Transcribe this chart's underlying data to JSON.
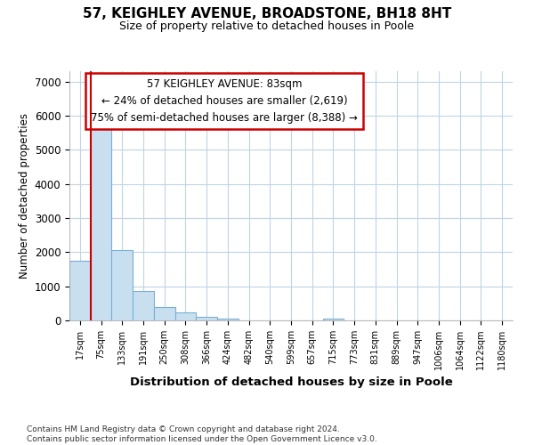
{
  "title1": "57, KEIGHLEY AVENUE, BROADSTONE, BH18 8HT",
  "title2": "Size of property relative to detached houses in Poole",
  "xlabel": "Distribution of detached houses by size in Poole",
  "ylabel": "Number of detached properties",
  "annotation_line1": "57 KEIGHLEY AVENUE: 83sqm",
  "annotation_line2": "← 24% of detached houses are smaller (2,619)",
  "annotation_line3": "75% of semi-detached houses are larger (8,388) →",
  "bar_edge_color": "#7aafd4",
  "bar_face_color": "#c8dff0",
  "vline_color": "#cc0000",
  "annotation_box_edgecolor": "#cc0000",
  "background_color": "#ffffff",
  "plot_bg_color": "#ffffff",
  "grid_color": "#c0d4e4",
  "tick_labels": [
    "17sqm",
    "75sqm",
    "133sqm",
    "191sqm",
    "250sqm",
    "308sqm",
    "366sqm",
    "424sqm",
    "482sqm",
    "540sqm",
    "599sqm",
    "657sqm",
    "715sqm",
    "773sqm",
    "831sqm",
    "889sqm",
    "947sqm",
    "1006sqm",
    "1064sqm",
    "1122sqm",
    "1180sqm"
  ],
  "bar_heights": [
    1750,
    5750,
    2050,
    850,
    380,
    230,
    100,
    50,
    0,
    0,
    0,
    0,
    60,
    0,
    0,
    0,
    0,
    0,
    0,
    0,
    0
  ],
  "ylim": [
    0,
    7300
  ],
  "yticks": [
    0,
    1000,
    2000,
    3000,
    4000,
    5000,
    6000,
    7000
  ],
  "vline_x": 0.5,
  "footnote1": "Contains HM Land Registry data © Crown copyright and database right 2024.",
  "footnote2": "Contains public sector information licensed under the Open Government Licence v3.0."
}
